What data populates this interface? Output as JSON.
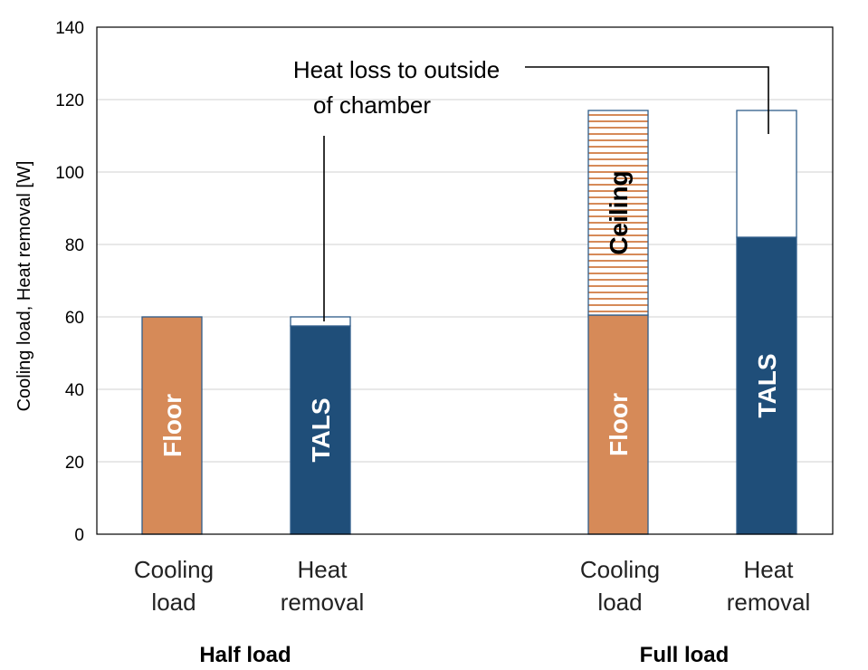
{
  "chart_data": {
    "type": "bar",
    "stacked": true,
    "ylabel": "Cooling load, Heat removal [W]",
    "ylim": [
      0,
      140
    ],
    "yticks": [
      0,
      20,
      40,
      60,
      80,
      100,
      120,
      140
    ],
    "grid": true,
    "groups": [
      {
        "label": "Half load",
        "bars": [
          {
            "label": [
              "Cooling",
              "load"
            ],
            "segments": [
              {
                "name": "Floor",
                "value": 60,
                "color": "#d68a58",
                "pattern": "solid"
              }
            ]
          },
          {
            "label": [
              "Heat",
              "removal"
            ],
            "segments": [
              {
                "name": "TALS",
                "value": 57.5,
                "color": "#1f4e79",
                "pattern": "solid"
              },
              {
                "name": "",
                "value": 2.5,
                "color": "#ffffff",
                "pattern": "solid"
              }
            ]
          }
        ]
      },
      {
        "label": "Full load",
        "bars": [
          {
            "label": [
              "Cooling",
              "load"
            ],
            "segments": [
              {
                "name": "Floor",
                "value": 60.5,
                "color": "#d68a58",
                "pattern": "solid"
              },
              {
                "name": "Ceiling",
                "value": 56.5,
                "color": "#d68a58",
                "pattern": "hlines"
              }
            ]
          },
          {
            "label": [
              "Heat",
              "removal"
            ],
            "segments": [
              {
                "name": "TALS",
                "value": 82,
                "color": "#1f4e79",
                "pattern": "solid"
              },
              {
                "name": "",
                "value": 35,
                "color": "#ffffff",
                "pattern": "solid"
              }
            ]
          }
        ]
      }
    ],
    "annotations": [
      {
        "text": [
          "Heat loss to outside",
          "of chamber"
        ]
      }
    ]
  }
}
